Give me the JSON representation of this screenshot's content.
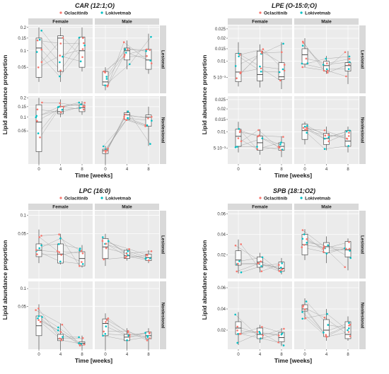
{
  "colors": {
    "Oclacitinib": "#F8766D",
    "Lokivetmab": "#00BFC4",
    "panel_bg": "#EBEBEB",
    "strip_bg": "#D9D9D9",
    "grid": "#FFFFFF",
    "line": "#9A9A9A"
  },
  "chart_data": [
    {
      "type": "box",
      "title": "CAR (12:1;O)",
      "legend": [
        "Oclacitinib",
        "Lokivetmab"
      ],
      "ylabel": "Lipid abundance proportion",
      "xlabel": "Time [weeks]",
      "facet_cols": [
        "Female",
        "Male"
      ],
      "facet_rows": [
        "Lesional",
        "Nonlesional"
      ],
      "x_ticks": [
        "0",
        "4",
        "8"
      ],
      "yscale": "sqrt",
      "rows": [
        {
          "y_ticks": [
            0.05,
            0.1,
            0.15,
            0.2
          ],
          "ylim": [
            0.006,
            0.21
          ],
          "boxes": [
            [
              [
                0.02,
                0.028,
                0.11,
                0.15,
                0.2
              ],
              [
                0.02,
                0.04,
                0.15,
                0.16,
                0.2
              ],
              [
                0.04,
                0.05,
                0.1,
                0.155,
                0.2
              ]
            ],
            [
              [
                0.009,
                0.015,
                0.02,
                0.04,
                0.05
              ],
              [
                0.045,
                0.07,
                0.1,
                0.11,
                0.14
              ],
              [
                0.035,
                0.045,
                0.07,
                0.105,
                0.17
              ]
            ]
          ]
        },
        {
          "y_ticks": [
            0.05,
            0.1,
            0.15,
            0.2
          ],
          "ylim": [
            0.0,
            0.21
          ],
          "boxes": [
            [
              [
                0.0,
                0.007,
                0.08,
                0.16,
                0.2
              ],
              [
                0.1,
                0.115,
                0.125,
                0.15,
                0.19
              ],
              [
                0.11,
                0.125,
                0.145,
                0.16,
                0.18
              ]
            ],
            [
              [
                0.0,
                0.005,
                0.008,
                0.01,
                0.015
              ],
              [
                0.085,
                0.09,
                0.11,
                0.12,
                0.13
              ],
              [
                0.015,
                0.065,
                0.1,
                0.11,
                0.15
              ]
            ]
          ]
        }
      ]
    },
    {
      "type": "box",
      "title": "LPE (O-15:0;O)",
      "legend": [
        "Oclacitinib",
        "Lokivetmab"
      ],
      "ylabel": "Lipid abundance proportion",
      "xlabel": "Time [weeks]",
      "facet_cols": [
        "Female",
        "Male"
      ],
      "facet_rows": [
        "Lesional",
        "Nonlesional"
      ],
      "x_ticks": [
        "0",
        "4",
        "8"
      ],
      "yscale": "sqrt",
      "rows": [
        {
          "y_ticks": [
            0.005,
            0.01,
            0.015,
            0.02,
            0.025
          ],
          "y_tick_labels": [
            "5·10⁻³",
            "0.01",
            "0.015",
            "0.02",
            "0.025"
          ],
          "ylim": [
            0.0018,
            0.027
          ],
          "boxes": [
            [
              [
                0.003,
                0.004,
                0.0065,
                0.013,
                0.018
              ],
              [
                0.0028,
                0.0042,
                0.0058,
                0.014,
                0.017
              ],
              [
                0.0025,
                0.0045,
                0.0052,
                0.0095,
                0.018
              ]
            ],
            [
              [
                0.008,
                0.009,
                0.0125,
                0.015,
                0.02
              ],
              [
                0.006,
                0.0068,
                0.0085,
                0.01,
                0.012
              ],
              [
                0.0035,
                0.0068,
                0.0085,
                0.0095,
                0.014
              ]
            ]
          ]
        },
        {
          "y_ticks": [
            0.005,
            0.01,
            0.015,
            0.02,
            0.025
          ],
          "y_tick_labels": [
            "5·10⁻³",
            "0.01",
            "0.015",
            "0.02",
            "0.025"
          ],
          "ylim": [
            0.0018,
            0.027
          ],
          "boxes": [
            [
              [
                0.004,
                0.0055,
                0.0085,
                0.011,
                0.014
              ],
              [
                0.0035,
                0.0045,
                0.0065,
                0.0085,
                0.011
              ],
              [
                0.003,
                0.0045,
                0.0055,
                0.0065,
                0.0085
              ]
            ],
            [
              [
                0.006,
                0.0075,
                0.0105,
                0.013,
                0.014
              ],
              [
                0.0045,
                0.006,
                0.0078,
                0.0095,
                0.012
              ],
              [
                0.004,
                0.0055,
                0.007,
                0.0105,
                0.012
              ]
            ]
          ]
        }
      ]
    },
    {
      "type": "box",
      "title": "LPC (16:0)",
      "legend": [
        "Oclacitinib",
        "Lokivetmab"
      ],
      "ylabel": "Lipid abundance proportion",
      "xlabel": "Time [weeks]",
      "facet_cols": [
        "Female",
        "Male"
      ],
      "facet_rows": [
        "Lesional",
        "Nonlesional"
      ],
      "x_ticks": [
        "0",
        "4",
        "8"
      ],
      "yscale": "sqrt",
      "rows": [
        {
          "y_ticks": [
            0.05,
            0.1
          ],
          "ylim": [
            0.0,
            0.115
          ],
          "boxes": [
            [
              [
                0.006,
                0.012,
                0.02,
                0.03,
                0.06
              ],
              [
                0.005,
                0.006,
                0.015,
                0.03,
                0.05
              ],
              [
                0.003,
                0.004,
                0.01,
                0.018,
                0.028
              ]
            ],
            [
              [
                0.004,
                0.01,
                0.025,
                0.04,
                0.05
              ],
              [
                0.008,
                0.01,
                0.013,
                0.02,
                0.022
              ],
              [
                0.006,
                0.008,
                0.011,
                0.015,
                0.02
              ]
            ]
          ]
        },
        {
          "y_ticks": [
            0.05,
            0.1
          ],
          "ylim": [
            0.0,
            0.125
          ],
          "boxes": [
            [
              [
                0.0,
                0.005,
                0.015,
                0.03,
                0.055
              ],
              [
                0.0,
                0.002,
                0.003,
                0.006,
                0.018
              ],
              [
                0.0,
                0.0005,
                0.001,
                0.0015,
                0.005
              ]
            ],
            [
              [
                0.0,
                0.005,
                0.018,
                0.025,
                0.035
              ],
              [
                0.0,
                0.002,
                0.004,
                0.006,
                0.012
              ],
              [
                0.0,
                0.003,
                0.005,
                0.008,
                0.012
              ]
            ]
          ]
        }
      ]
    },
    {
      "type": "box",
      "title": "SPB (18:1;O2)",
      "legend": [
        "Oclacitinib",
        "Lokivetmab"
      ],
      "ylabel": "Lipid abundance proportion",
      "xlabel": "Time [weeks]",
      "facet_cols": [
        "Female",
        "Male"
      ],
      "facet_rows": [
        "Lesional",
        "Nonlesional"
      ],
      "x_ticks": [
        "0",
        "4",
        "8"
      ],
      "yscale": "linear",
      "rows": [
        {
          "y_ticks": [
            0.02,
            0.04,
            0.06
          ],
          "ylim": [
            -0.003,
            0.063
          ],
          "boxes": [
            [
              [
                0.002,
                0.01,
                0.015,
                0.024,
                0.035
              ],
              [
                0.003,
                0.008,
                0.013,
                0.018,
                0.022
              ],
              [
                0.001,
                0.004,
                0.007,
                0.013,
                0.017
              ]
            ],
            [
              [
                0.015,
                0.02,
                0.03,
                0.04,
                0.045
              ],
              [
                0.012,
                0.022,
                0.028,
                0.032,
                0.038
              ],
              [
                0.005,
                0.018,
                0.025,
                0.033,
                0.036
              ]
            ]
          ]
        },
        {
          "y_ticks": [
            0.02,
            0.04,
            0.06
          ],
          "ylim": [
            0.002,
            0.066
          ],
          "boxes": [
            [
              [
                0.006,
                0.016,
                0.022,
                0.028,
                0.037
              ],
              [
                0.008,
                0.012,
                0.016,
                0.022,
                0.025
              ],
              [
                0.005,
                0.009,
                0.013,
                0.018,
                0.022
              ]
            ],
            [
              [
                0.03,
                0.038,
                0.04,
                0.044,
                0.05
              ],
              [
                0.01,
                0.014,
                0.02,
                0.03,
                0.04
              ],
              [
                0.01,
                0.012,
                0.016,
                0.028,
                0.033
              ]
            ]
          ]
        }
      ]
    }
  ]
}
